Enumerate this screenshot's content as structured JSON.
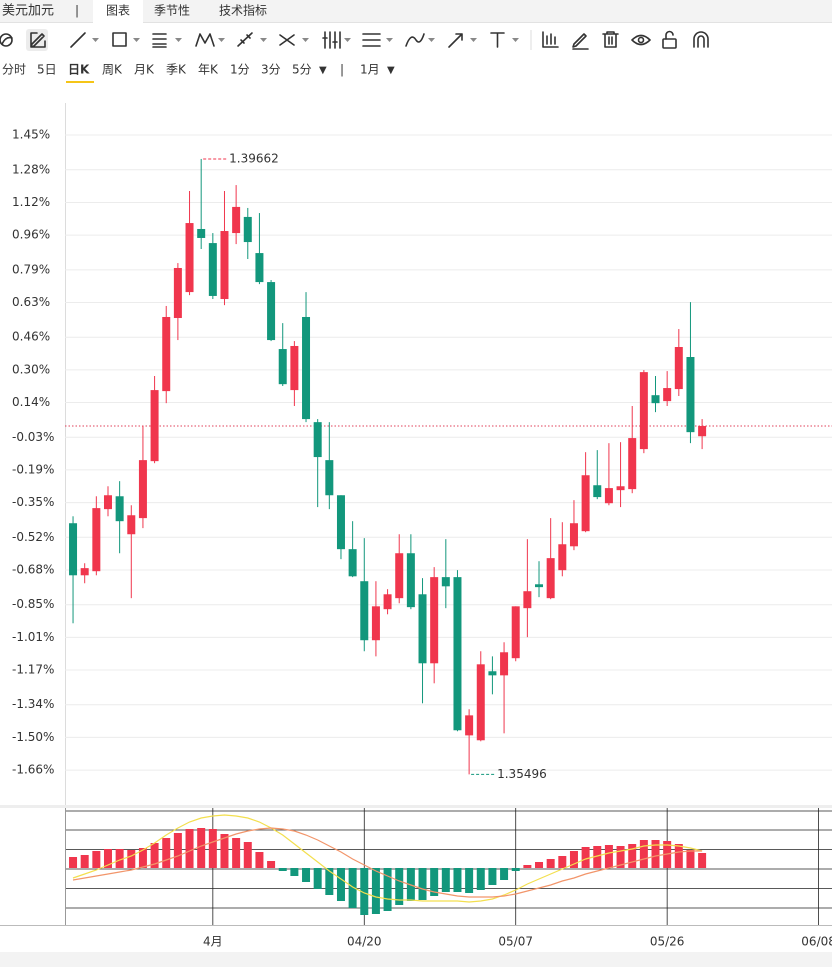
{
  "tab_bar": {
    "symbol": "美元加元",
    "separator": "|",
    "tabs": [
      "图表",
      "季节性",
      "技术指标"
    ],
    "selected": 0
  },
  "period_bar": {
    "items": [
      "分时",
      "5日",
      "日K",
      "周K",
      "月K",
      "季K",
      "年K",
      "1分",
      "3分",
      "5分"
    ],
    "more": "▼",
    "selected": 2,
    "separator": "|",
    "range": "1月",
    "range_arrow": "▼"
  },
  "chart_data": [
    {
      "type": "candlestick",
      "up_color": "#f0364d",
      "down_color": "#12977c",
      "open": [
        -0.451,
        -0.706,
        -0.686,
        -0.382,
        -0.319,
        -0.505,
        -0.426,
        -0.147,
        0.196,
        0.554,
        0.681,
        0.99,
        0.921,
        0.647,
        0.97,
        1.049,
        0.872,
        0.73,
        0.402,
        0.201,
        0.559,
        0.044,
        -0.142,
        -0.314,
        -0.578,
        -0.735,
        -1.024,
        -0.872,
        -0.818,
        -0.598,
        -0.799,
        -1.137,
        -0.715,
        -0.715,
        -1.49,
        -1.514,
        -1.176,
        -1.196,
        -1.112,
        -0.867,
        -0.75,
        -0.818,
        -0.681,
        -0.564,
        -0.49,
        -0.265,
        -0.353,
        -0.289,
        -0.284,
        -0.088,
        0.176,
        0.147,
        0.206,
        0.363,
        -0.025
      ],
      "high": [
        -0.417,
        -0.647,
        -0.319,
        -0.27,
        -0.245,
        -0.363,
        0.025,
        0.27,
        0.613,
        0.823,
        1.176,
        1.333,
        0.97,
        1.176,
        1.205,
        1.093,
        1.068,
        0.74,
        0.529,
        0.441,
        0.681,
        0.059,
        0.044,
        -0.314,
        -0.441,
        -0.524,
        -0.735,
        -0.774,
        -0.505,
        -0.505,
        -0.72,
        -0.666,
        -0.529,
        -0.681,
        -1.362,
        -1.078,
        -1.103,
        -1.034,
        -0.858,
        -0.529,
        -0.637,
        -0.426,
        -0.446,
        -0.338,
        -0.103,
        -0.093,
        -0.059,
        -0.054,
        0.123,
        0.299,
        0.27,
        0.294,
        0.5,
        0.632,
        0.059
      ],
      "low": [
        -0.941,
        -0.745,
        -0.706,
        -0.417,
        -0.598,
        -0.818,
        -0.475,
        -0.157,
        0.137,
        0.446,
        0.666,
        0.892,
        0.647,
        0.617,
        0.916,
        0.843,
        0.72,
        0.441,
        0.221,
        0.123,
        0.044,
        -0.372,
        -0.382,
        -0.627,
        -0.715,
        -1.078,
        -1.103,
        -0.897,
        -0.843,
        -0.872,
        -1.333,
        -1.235,
        -0.867,
        -1.47,
        -1.681,
        -1.519,
        -1.289,
        -1.48,
        -1.127,
        -1.009,
        -0.813,
        -0.823,
        -0.711,
        -0.583,
        -0.495,
        -0.333,
        -0.363,
        -0.372,
        -0.304,
        -0.108,
        0.093,
        0.123,
        0.172,
        -0.059,
        -0.088
      ],
      "close": [
        -0.706,
        -0.671,
        -0.377,
        -0.314,
        -0.441,
        -0.412,
        -0.142,
        0.201,
        0.559,
        0.799,
        1.019,
        0.946,
        0.662,
        0.98,
        1.098,
        0.926,
        0.73,
        0.446,
        0.23,
        0.417,
        0.059,
        -0.127,
        -0.314,
        -0.578,
        -0.711,
        -1.024,
        -0.858,
        -0.799,
        -0.598,
        -0.862,
        -1.137,
        -0.715,
        -0.76,
        -1.465,
        -1.392,
        -1.142,
        -1.196,
        -1.083,
        -0.858,
        -0.784,
        -0.764,
        -0.622,
        -0.554,
        -0.451,
        -0.216,
        -0.323,
        -0.279,
        -0.27,
        -0.034,
        0.289,
        0.137,
        0.211,
        0.412,
        -0.005,
        0.025
      ],
      "ylim": [
        -1.831,
        1.607
      ],
      "yticks": [
        {
          "value": 1.45,
          "label": "1.45%"
        },
        {
          "value": 1.28,
          "label": "1.28%"
        },
        {
          "value": 1.12,
          "label": "1.12%"
        },
        {
          "value": 0.96,
          "label": "0.96%"
        },
        {
          "value": 0.79,
          "label": "0.79%"
        },
        {
          "value": 0.63,
          "label": "0.63%"
        },
        {
          "value": 0.46,
          "label": "0.46%"
        },
        {
          "value": 0.3,
          "label": "0.30%"
        },
        {
          "value": 0.14,
          "label": "0.14%"
        },
        {
          "value": -0.03,
          "label": "-0.03%"
        },
        {
          "value": -0.19,
          "label": "-0.19%"
        },
        {
          "value": -0.35,
          "label": "-0.35%"
        },
        {
          "value": -0.52,
          "label": "-0.52%"
        },
        {
          "value": -0.68,
          "label": "-0.68%"
        },
        {
          "value": -0.85,
          "label": "-0.85%"
        },
        {
          "value": -1.01,
          "label": "-1.01%"
        },
        {
          "value": -1.17,
          "label": "-1.17%"
        },
        {
          "value": -1.34,
          "label": "-1.34%"
        },
        {
          "value": -1.5,
          "label": "-1.50%"
        },
        {
          "value": -1.66,
          "label": "-1.66%"
        }
      ],
      "xlim": [
        -0.69,
        65.15
      ],
      "xticks": [
        {
          "value": 12,
          "label": "4月"
        },
        {
          "value": 25,
          "label": "04/20"
        },
        {
          "value": 38,
          "label": "05/07"
        },
        {
          "value": 51,
          "label": "05/26"
        },
        {
          "value": 64,
          "label": "06/08"
        }
      ],
      "max_label": "1.39662",
      "min_label": "1.35496",
      "grid": true
    },
    {
      "type": "macd",
      "histogram": [
        11,
        13,
        17,
        19,
        19,
        18,
        20,
        25,
        30,
        35,
        39,
        40,
        39,
        34,
        30,
        26,
        16,
        7,
        -3,
        -8,
        -14,
        -21,
        -27,
        -33,
        -40,
        -47,
        -46,
        -43,
        -37,
        -33,
        -32,
        -28,
        -24,
        -24,
        -25,
        -22,
        -17,
        -12,
        -3,
        3,
        6,
        9,
        12,
        17,
        21,
        22,
        23,
        22,
        24,
        28,
        28,
        27,
        24,
        18,
        15
      ],
      "up_color": "#f0364d",
      "down_color": "#12977c",
      "series": [
        {
          "color": "#f3df4e",
          "values": [
            -10,
            -6,
            -2,
            3,
            8,
            12,
            18,
            25,
            33,
            40,
            46,
            50,
            52,
            53,
            52,
            50,
            46,
            40,
            33,
            24,
            15,
            6,
            -3,
            -11,
            -19,
            -25,
            -29,
            -31,
            -32,
            -32,
            -33,
            -33,
            -33,
            -33,
            -34,
            -33,
            -31,
            -27,
            -22,
            -16,
            -11,
            -6,
            -1,
            4,
            9,
            12,
            15,
            17,
            19,
            22,
            23,
            23,
            22,
            20,
            17
          ]
        },
        {
          "color": "#f2956a",
          "values": [
            -12,
            -10,
            -8,
            -6,
            -4,
            -2,
            1,
            4,
            8,
            12,
            17,
            22,
            26,
            30,
            34,
            37,
            39,
            40,
            39,
            37,
            33,
            28,
            22,
            16,
            9,
            3,
            -3,
            -8,
            -13,
            -17,
            -21,
            -24,
            -26,
            -28,
            -29,
            -29,
            -29,
            -28,
            -26,
            -23,
            -20,
            -17,
            -13,
            -10,
            -6,
            -3,
            0,
            3,
            6,
            9,
            12,
            14,
            16,
            17,
            17
          ]
        }
      ],
      "ylim": [
        -57,
        60
      ]
    }
  ]
}
